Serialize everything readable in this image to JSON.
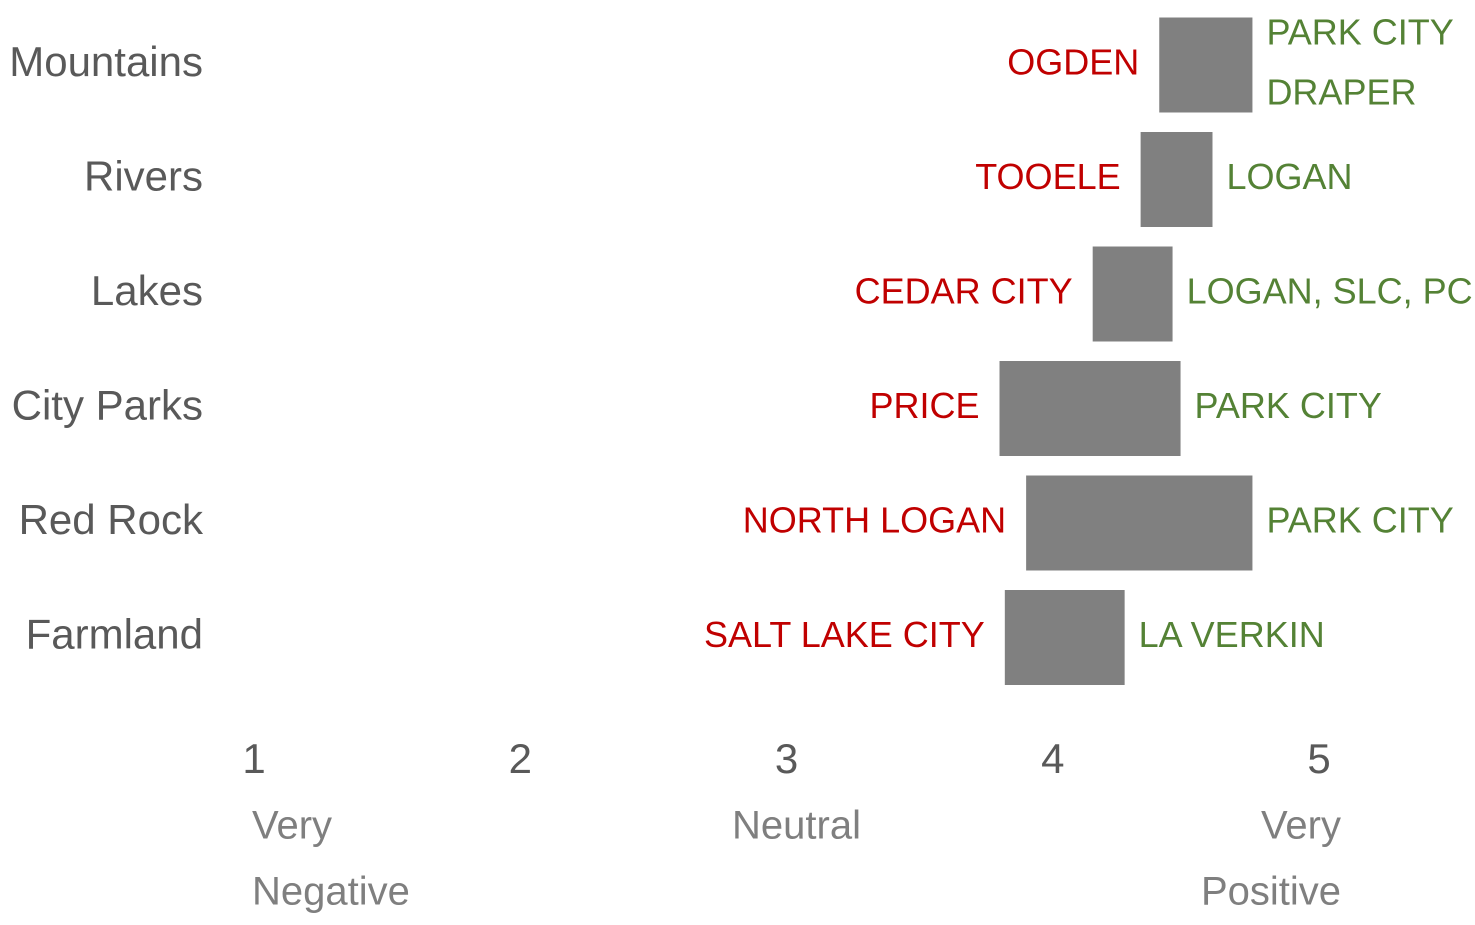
{
  "chart_data": {
    "type": "range_bar",
    "categories": [
      "Mountains",
      "Rivers",
      "Lakes",
      "City Parks",
      "Red Rock",
      "Farmland"
    ],
    "low": [
      4.4,
      4.33,
      4.15,
      3.8,
      3.9,
      3.82
    ],
    "high": [
      4.75,
      4.6,
      4.45,
      4.48,
      4.75,
      4.27
    ],
    "low_labels": [
      "OGDEN",
      "TOOELE",
      "CEDAR CITY",
      "PRICE",
      "NORTH LOGAN",
      "SALT LAKE CITY"
    ],
    "high_labels": [
      [
        "PARK CITY",
        "DRAPER"
      ],
      [
        "LOGAN"
      ],
      [
        "LOGAN, SLC, PC"
      ],
      [
        "PARK CITY"
      ],
      [
        "PARK CITY"
      ],
      [
        "LA VERKIN"
      ]
    ],
    "color": "#808080",
    "low_label_color": "#c00000",
    "high_label_color": "#548235",
    "xlim": [
      1,
      5
    ],
    "xticks": [
      1,
      2,
      3,
      4,
      5
    ],
    "tick_notes": [
      {
        "value": 1,
        "lines": [
          "Very",
          "Negative"
        ]
      },
      {
        "value": 3,
        "lines": [
          "Neutral"
        ]
      },
      {
        "value": 5,
        "lines": [
          "Very",
          "Positive"
        ]
      }
    ]
  }
}
